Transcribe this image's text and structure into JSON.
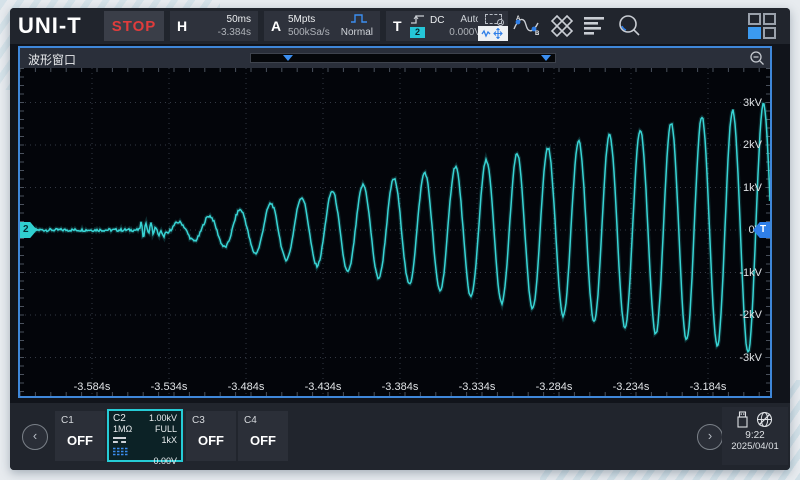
{
  "colors": {
    "accent_blue": "#3f87d9",
    "trace_cyan": "#38d4d4",
    "stop_red": "#e03c3c",
    "trigger_blue": "#2f7fe8",
    "c2_border": "#26ccd6"
  },
  "topbar": {
    "brand": "UNI-T",
    "run_state": "STOP",
    "horizontal": {
      "label": "H",
      "timebase": "50ms",
      "offset": "-3.384s"
    },
    "acquire": {
      "label": "A",
      "memory_depth": "5Mpts",
      "sample_rate": "500kSa/s",
      "mode": "Normal"
    },
    "trigger": {
      "label": "T",
      "coupling": "DC",
      "sweep": "Auto",
      "source": "2",
      "level": "0.000V"
    }
  },
  "window": {
    "title": "波形窗口"
  },
  "chart_data": {
    "type": "line",
    "x_unit": "s",
    "y_unit": "kV",
    "s_per_div": 0.05,
    "kv_per_div": 1.0,
    "time_labels": [
      "-3.584s",
      "-3.534s",
      "-3.484s",
      "-3.434s",
      "-3.384s",
      "-3.334s",
      "-3.284s",
      "-3.234s",
      "-3.184s"
    ],
    "voltage_labels": [
      "3kV",
      "2kV",
      "1kV",
      "0V",
      "-1kV",
      "-2kV",
      "-3kV"
    ],
    "trace_color": "#38d4d4",
    "signal": {
      "description": "flat 0V line that breaks into a 50Hz sine with linearly growing amplitude up to ~3kV",
      "center_time_s": -3.384,
      "onset_time_s": -3.553,
      "frequency_hz": 50,
      "amplitude_slope_kv_per_s": 7.3,
      "max_amplitude_kv": 3.1,
      "noise_kv": 0.035,
      "flat_level_kv": 0.0
    }
  },
  "markers": {
    "channel": "2",
    "trigger": "T"
  },
  "channels": {
    "c1": {
      "name": "C1",
      "state": "OFF"
    },
    "c2": {
      "name": "C2",
      "scale": "1.00kV",
      "impedance": "1MΩ",
      "bandwidth": "FULL",
      "probe": "1kX",
      "offset": "0.00V"
    },
    "c3": {
      "name": "C3",
      "state": "OFF"
    },
    "c4": {
      "name": "C4",
      "state": "OFF"
    }
  },
  "system": {
    "time": "9:22",
    "date": "2025/04/01"
  }
}
